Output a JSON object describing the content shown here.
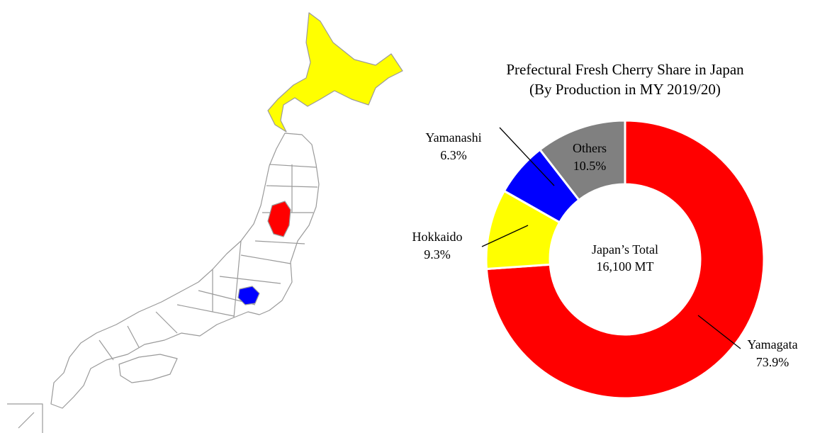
{
  "chart_data": {
    "type": "pie",
    "donut": true,
    "title": "Prefectural Fresh Cherry Share in Japan",
    "subtitle": "(By Production in MY 2019/20)",
    "categories": [
      "Yamagata",
      "Hokkaido",
      "Yamanashi",
      "Others"
    ],
    "values": [
      73.9,
      9.3,
      6.3,
      10.5
    ],
    "value_labels": [
      "73.9%",
      "9.3%",
      "6.3%",
      "10.5%"
    ],
    "colors": [
      "#ff0000",
      "#ffff00",
      "#0000ff",
      "#808080"
    ],
    "annotations": [
      "Japan’s Total",
      "16,100 MT"
    ]
  }
}
